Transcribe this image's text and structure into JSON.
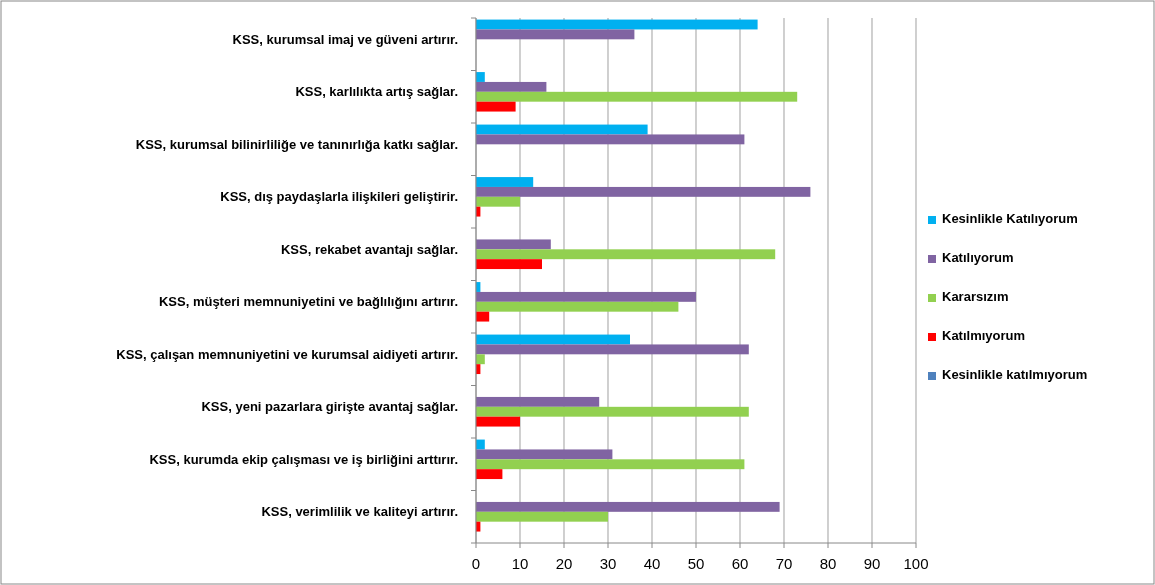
{
  "chart_data": {
    "type": "bar",
    "orientation": "horizontal",
    "categories": [
      "KSS, kurumsal imaj ve güveni artırır.",
      "KSS, karlılıkta artış sağlar.",
      "KSS, kurumsal bilinirliliğe ve tanınırlığa katkı sağlar.",
      "KSS, dış paydaşlarla ilişkileri geliştirir.",
      "KSS, rekabet avantajı sağlar.",
      "KSS, müşteri memnuniyetini ve bağlılığını artırır.",
      "KSS, çalışan memnuniyetini ve kurumsal aidiyeti artırır.",
      "KSS, yeni pazarlara girişte avantaj sağlar.",
      "KSS, kurumda ekip çalışması ve iş birliğini arttırır.",
      "KSS, verimlilik ve kaliteyi artırır."
    ],
    "series": [
      {
        "name": "Kesinlikle Katılıyorum",
        "color": "#00b0f0",
        "values": [
          64,
          2,
          39,
          13,
          0,
          1,
          35,
          0,
          2,
          0
        ]
      },
      {
        "name": "Katılıyorum",
        "color": "#8064a2",
        "values": [
          36,
          16,
          61,
          76,
          17,
          50,
          62,
          28,
          31,
          69
        ]
      },
      {
        "name": "Kararsızım",
        "color": "#92d050",
        "values": [
          0,
          73,
          0,
          10,
          68,
          46,
          2,
          62,
          61,
          30
        ]
      },
      {
        "name": "Katılmıyorum",
        "color": "#ff0000",
        "values": [
          0,
          9,
          0,
          1,
          15,
          3,
          1,
          10,
          6,
          1
        ]
      },
      {
        "name": "Kesinlikle katılmıyorum",
        "color": "#4f81bd",
        "values": [
          0,
          0,
          0,
          0,
          0,
          0,
          0,
          0,
          0,
          0
        ]
      }
    ],
    "xlim": [
      0,
      100
    ],
    "xticks": [
      0,
      10,
      20,
      30,
      40,
      50,
      60,
      70,
      80,
      90,
      100
    ],
    "grid": "x",
    "legend": "right"
  }
}
